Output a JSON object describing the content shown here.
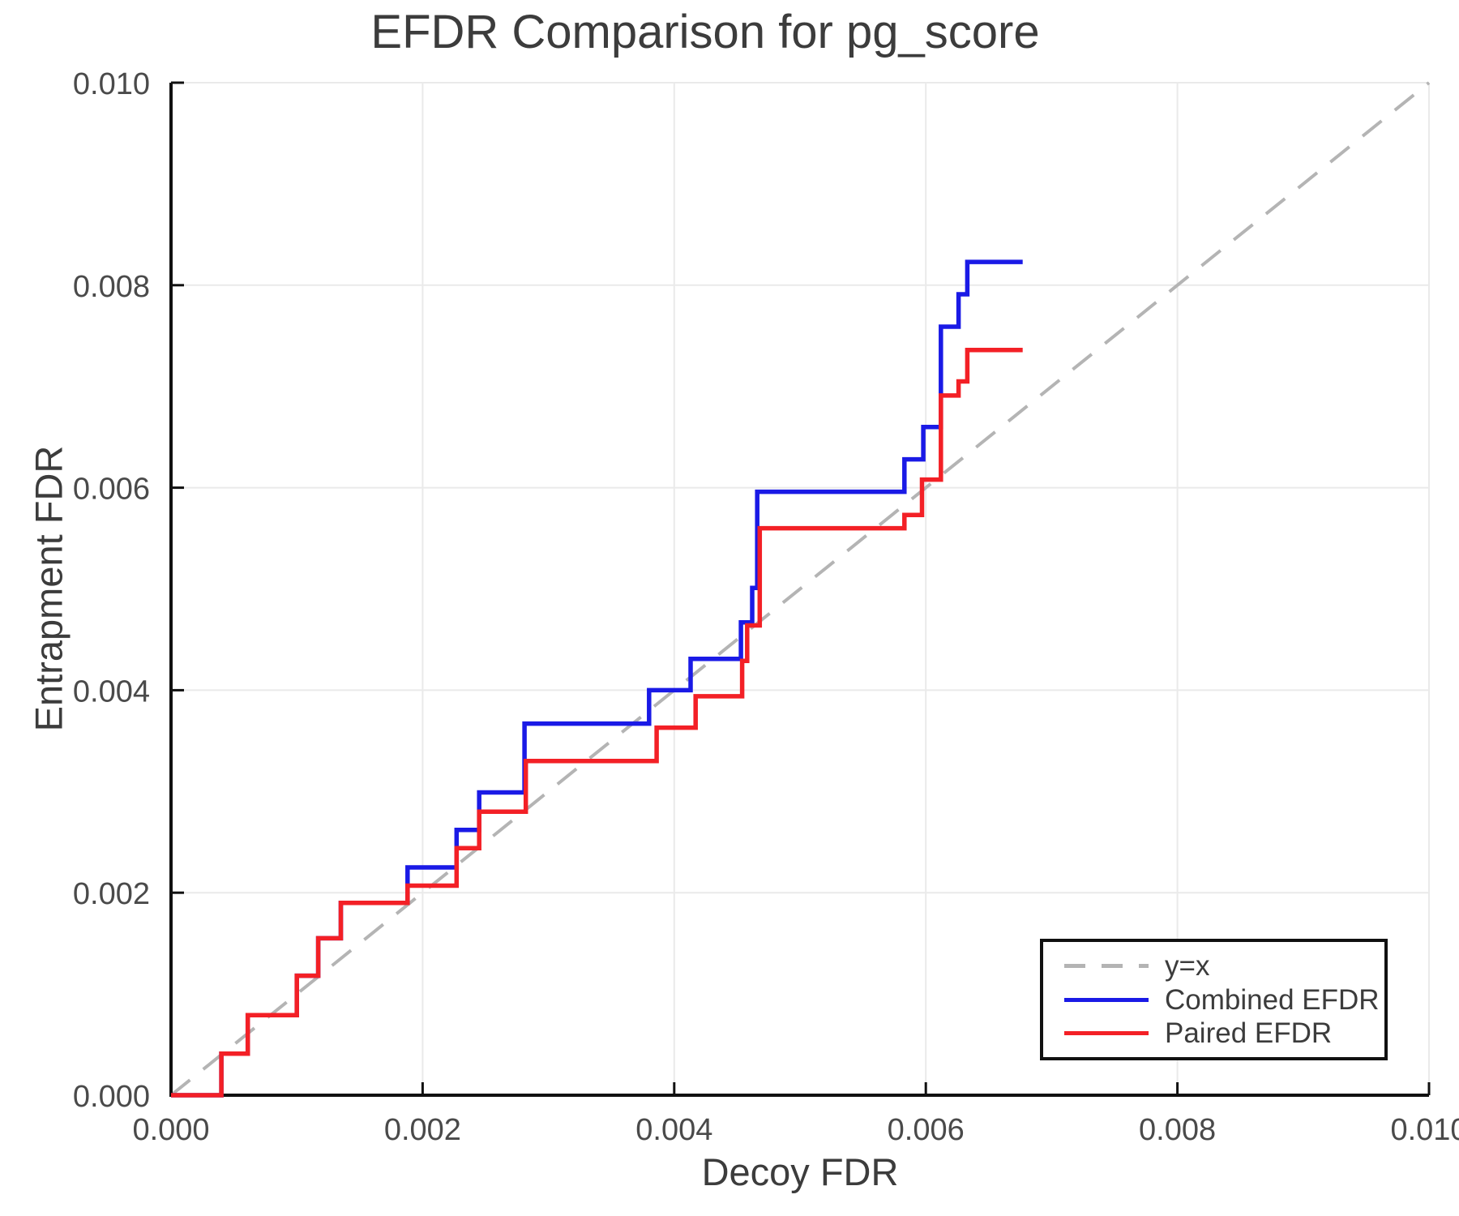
{
  "chart_data": {
    "type": "line",
    "subtype": "step-post",
    "title": "EFDR Comparison for pg_score",
    "xlabel": "Decoy FDR",
    "ylabel": "Entrapment FDR",
    "xlim": [
      0,
      0.01
    ],
    "ylim": [
      0,
      0.01
    ],
    "tick_values": [
      0,
      0.002,
      0.004,
      0.006,
      0.008,
      0.01
    ],
    "x_tick_labels": [
      "0.000",
      "0.002",
      "0.004",
      "0.006",
      "0.008",
      "0.010"
    ],
    "y_tick_labels": [
      "0.000",
      "0.002",
      "0.004",
      "0.006",
      "0.008",
      "0.010"
    ],
    "grid": true,
    "legend_position": "lower right",
    "diagonal": {
      "label": "y=x",
      "color": "#b4b4b4",
      "dashed": true
    },
    "series": [
      {
        "name": "Combined EFDR",
        "color": "#1a1ae6",
        "step_points": [
          [
            0.0,
            0.0
          ],
          [
            0.0004,
            0.00041
          ],
          [
            0.00061,
            0.00079
          ],
          [
            0.001,
            0.00118
          ],
          [
            0.00117,
            0.00155
          ],
          [
            0.00135,
            0.0019
          ],
          [
            0.00188,
            0.00225
          ],
          [
            0.00227,
            0.00262
          ],
          [
            0.00245,
            0.00299
          ],
          [
            0.00281,
            0.00367
          ],
          [
            0.0038,
            0.004
          ],
          [
            0.00413,
            0.00431
          ],
          [
            0.00453,
            0.00467
          ],
          [
            0.00462,
            0.00501
          ],
          [
            0.00466,
            0.00596
          ],
          [
            0.00583,
            0.00628
          ],
          [
            0.00598,
            0.0066
          ],
          [
            0.00612,
            0.00759
          ],
          [
            0.00626,
            0.00791
          ],
          [
            0.00633,
            0.00823
          ]
        ],
        "end_x": 0.00677
      },
      {
        "name": "Paired EFDR",
        "color": "#f32026",
        "step_points": [
          [
            0.0,
            0.0
          ],
          [
            0.0004,
            0.00041
          ],
          [
            0.00061,
            0.00079
          ],
          [
            0.001,
            0.00118
          ],
          [
            0.00117,
            0.00155
          ],
          [
            0.00135,
            0.0019
          ],
          [
            0.00188,
            0.00207
          ],
          [
            0.00227,
            0.00244
          ],
          [
            0.00245,
            0.0028
          ],
          [
            0.00282,
            0.0033
          ],
          [
            0.00386,
            0.00363
          ],
          [
            0.00417,
            0.00394
          ],
          [
            0.00454,
            0.00429
          ],
          [
            0.00458,
            0.00464
          ],
          [
            0.00468,
            0.0056
          ],
          [
            0.00583,
            0.00573
          ],
          [
            0.00597,
            0.00608
          ],
          [
            0.00612,
            0.00691
          ],
          [
            0.00626,
            0.00705
          ],
          [
            0.00633,
            0.00736
          ]
        ],
        "end_x": 0.00677
      }
    ],
    "style_colors": {
      "grid": "#eaeaea",
      "spine": "#111111",
      "tick_label": "#4a4a4a",
      "text": "#3c3c3c"
    }
  }
}
